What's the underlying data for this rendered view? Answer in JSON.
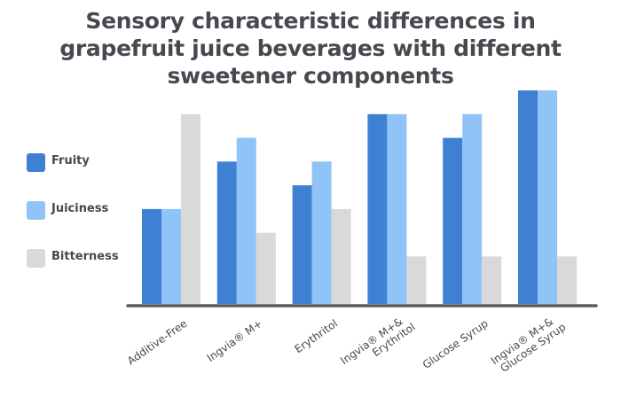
{
  "chart_data": {
    "type": "bar",
    "title_lines": [
      "Sensory characteristic differences in",
      "grapefruit juice beverages with different",
      "sweetener components"
    ],
    "xlabel": "",
    "ylabel": "",
    "ylim": [
      0,
      9
    ],
    "grid": false,
    "legend_position": "left",
    "categories": [
      {
        "lines": [
          "Additive-Free"
        ]
      },
      {
        "lines": [
          "Ingvia® M+"
        ]
      },
      {
        "lines": [
          "Erythritol"
        ]
      },
      {
        "lines": [
          "Ingvia® M+&",
          "Erythritol"
        ]
      },
      {
        "lines": [
          "Glucose Syrup"
        ]
      },
      {
        "lines": [
          "Ingvia® M+&",
          "Glucose Syrup"
        ]
      }
    ],
    "series": [
      {
        "name": "Fruity",
        "color": "#4080D3",
        "values": [
          4,
          6,
          5,
          8,
          7,
          9
        ]
      },
      {
        "name": "Juiciness",
        "color": "#90C3F7",
        "values": [
          4,
          7,
          6,
          8,
          8,
          9
        ]
      },
      {
        "name": "Bitterness",
        "color": "#D9D9D9",
        "values": [
          8,
          3,
          4,
          2,
          2,
          2
        ]
      }
    ],
    "axis_color": "#5E5B67"
  }
}
